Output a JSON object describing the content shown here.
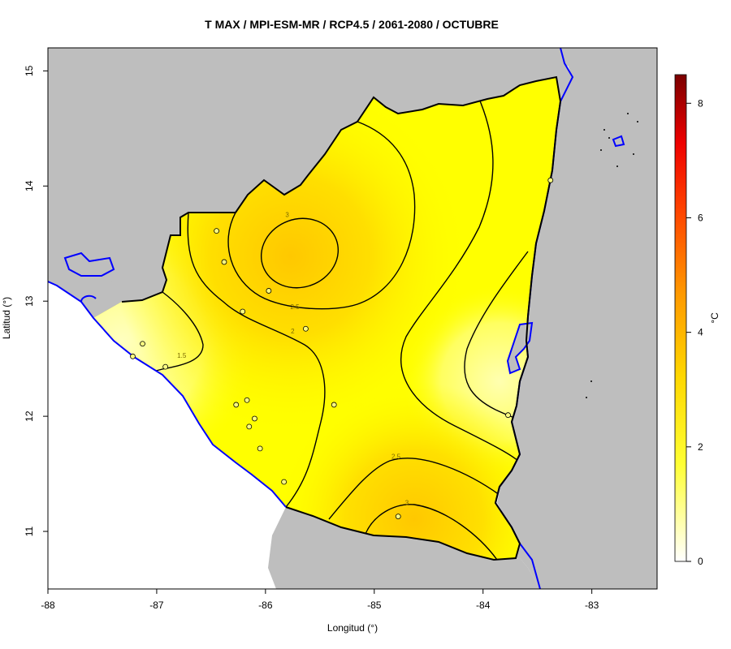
{
  "title": "T MAX / MPI-ESM-MR / RCP4.5 / 2061-2080 / OCTUBRE",
  "x_axis": {
    "label": "Longitud (°)",
    "ticks": [
      "-88",
      "-87",
      "-86",
      "-85",
      "-84",
      "-83"
    ],
    "tick_values": [
      -88,
      -87,
      -86,
      -85,
      -84,
      -83
    ],
    "range": [
      -88,
      -82.4
    ]
  },
  "y_axis": {
    "label": "Latitud (°)",
    "ticks": [
      "11",
      "12",
      "13",
      "14",
      "15"
    ],
    "tick_values": [
      11,
      12,
      13,
      14,
      15
    ],
    "range": [
      10.5,
      15.2
    ]
  },
  "colorbar": {
    "unit": "°C",
    "ticks": [
      "0",
      "2",
      "4",
      "6",
      "8"
    ],
    "tick_values": [
      0,
      2,
      4,
      6,
      8
    ],
    "range": [
      0,
      8.5
    ],
    "colors": [
      "#ffffff",
      "#ffff33",
      "#ffd700",
      "#ff9900",
      "#ff4400",
      "#ee0000",
      "#7a0000"
    ]
  },
  "contour_labels": [
    {
      "text": "3",
      "lon": -85.8,
      "lat": 13.73
    },
    {
      "text": "2.5",
      "lon": -85.73,
      "lat": 12.93
    },
    {
      "text": "2",
      "lon": -85.75,
      "lat": 12.72
    },
    {
      "text": "1.5",
      "lon": -86.77,
      "lat": 12.51
    },
    {
      "text": "2.5",
      "lon": -84.8,
      "lat": 11.63
    },
    {
      "text": "3",
      "lon": -84.7,
      "lat": 11.23
    }
  ],
  "stations": [
    {
      "lon": -86.45,
      "lat": 13.61
    },
    {
      "lon": -86.38,
      "lat": 13.34
    },
    {
      "lon": -85.97,
      "lat": 13.09
    },
    {
      "lon": -86.21,
      "lat": 12.91
    },
    {
      "lon": -85.63,
      "lat": 12.76
    },
    {
      "lon": -87.13,
      "lat": 12.63
    },
    {
      "lon": -87.22,
      "lat": 12.52
    },
    {
      "lon": -86.92,
      "lat": 12.43
    },
    {
      "lon": -86.27,
      "lat": 12.1
    },
    {
      "lon": -86.17,
      "lat": 12.14
    },
    {
      "lon": -86.1,
      "lat": 11.98
    },
    {
      "lon": -86.15,
      "lat": 11.91
    },
    {
      "lon": -86.05,
      "lat": 11.72
    },
    {
      "lon": -85.37,
      "lat": 12.1
    },
    {
      "lon": -85.83,
      "lat": 11.43
    },
    {
      "lon": -84.78,
      "lat": 11.13
    },
    {
      "lon": -83.77,
      "lat": 12.01
    },
    {
      "lon": -83.38,
      "lat": 14.05
    }
  ],
  "colors": {
    "land_outside": "#bebebe",
    "water_outline": "#0000ff",
    "border": "#000000",
    "field_low": "#ffffa0",
    "field_mid": "#ffff00",
    "field_high": "#ffcc00"
  }
}
